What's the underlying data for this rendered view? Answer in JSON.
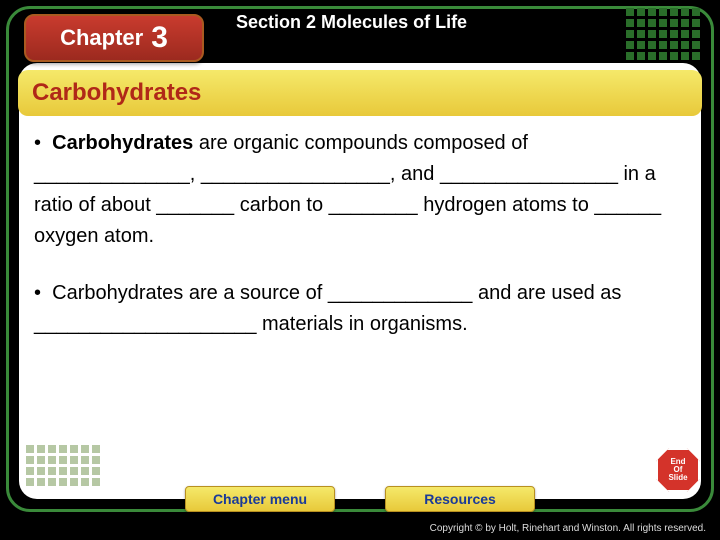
{
  "header": {
    "chapter_label": "Chapter",
    "chapter_number": "3",
    "section_label": "Section 2",
    "section_title": "Molecules of Life"
  },
  "subtitle": "Carbohydrates",
  "bullets": [
    {
      "keyword": "Carbohydrates",
      "rest": " are organic compounds composed of ______________, _________________, and ________________ in a ratio of about _______ carbon to ________ hydrogen atoms to ______ oxygen atom."
    },
    {
      "keyword": "",
      "rest": "Carbohydrates are a source of _____________ and are used as ____________________ materials in organisms."
    }
  ],
  "nav": {
    "chapter_menu": "Chapter menu",
    "resources": "Resources"
  },
  "end_badge": {
    "l1": "End",
    "l2": "Of",
    "l3": "Slide"
  },
  "copyright": "Copyright © by Holt, Rinehart and Winston. All rights reserved.",
  "colors": {
    "frame_border": "#3a8a3a",
    "chapter_bg": "#b8341f",
    "band_bg": "#ecd54a",
    "subtitle_color": "#b02818",
    "btn_text": "#1a3a99"
  }
}
